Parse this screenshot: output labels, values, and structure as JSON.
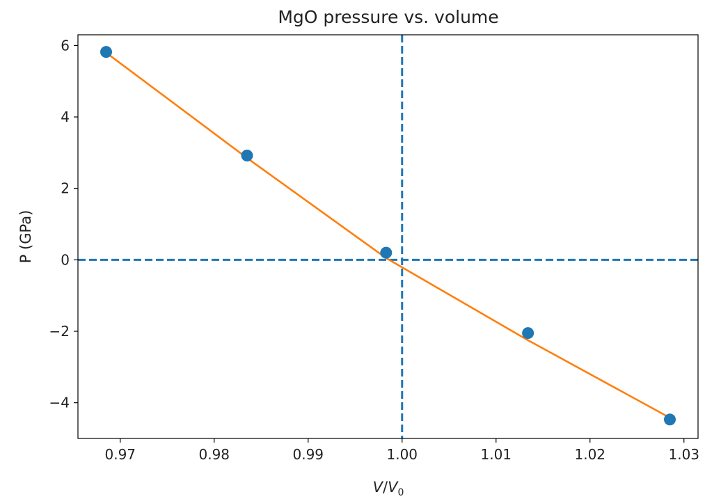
{
  "chart_data": {
    "type": "scatter",
    "title": "MgO pressure vs. volume",
    "xlabel_main": "V",
    "xlabel_sep": "/",
    "xlabel_denom": "V",
    "xlabel_sub": "0",
    "ylabel": "P (GPa)",
    "xlim": [
      0.9655,
      1.0315
    ],
    "ylim": [
      -5.0,
      6.3
    ],
    "xticks": [
      0.97,
      0.98,
      0.99,
      1.0,
      1.01,
      1.02,
      1.03
    ],
    "xtick_labels": [
      "0.97",
      "0.98",
      "0.99",
      "1.00",
      "1.01",
      "1.02",
      "1.03"
    ],
    "yticks": [
      -4,
      -2,
      0,
      2,
      4,
      6
    ],
    "ytick_labels": [
      "−4",
      "−2",
      "0",
      "2",
      "4",
      "6"
    ],
    "grid": false,
    "series": [
      {
        "kind": "scatter",
        "color": "#1f77b4",
        "x": [
          0.9685,
          0.9835,
          0.9983,
          1.0134,
          1.0285
        ],
        "y": [
          5.82,
          2.92,
          0.2,
          -2.05,
          -4.47
        ]
      },
      {
        "kind": "line",
        "color": "#ff7f0e",
        "x": [
          0.9685,
          0.9835,
          0.9983,
          1.0134,
          1.0285
        ],
        "y": [
          5.8,
          2.85,
          0.05,
          -2.25,
          -4.42
        ]
      }
    ],
    "reference_lines": [
      {
        "orientation": "vertical",
        "value": 1.0,
        "style": "dashed",
        "color": "#1f77b4"
      },
      {
        "orientation": "horizontal",
        "value": 0.0,
        "style": "dashed",
        "color": "#1f77b4"
      }
    ]
  }
}
